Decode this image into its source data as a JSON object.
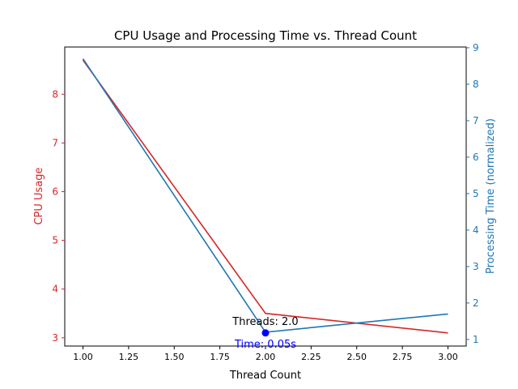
{
  "chart_data": {
    "type": "line",
    "title": "CPU Usage and Processing Time vs. Thread Count",
    "xlabel": "Thread Count",
    "ylabel_left": "CPU Usage",
    "ylabel_right": "Processing Time (normalized)",
    "xlim": [
      0.9,
      3.1
    ],
    "ylim_left": [
      2.83,
      8.97
    ],
    "ylim_right": [
      0.82,
      9.02
    ],
    "x_ticks": [
      1.0,
      1.25,
      1.5,
      1.75,
      2.0,
      2.25,
      2.5,
      2.75,
      3.0
    ],
    "x_tick_labels": [
      "1.00",
      "1.25",
      "1.50",
      "1.75",
      "2.00",
      "2.25",
      "2.50",
      "2.75",
      "3.00"
    ],
    "y_left_ticks": [
      3,
      4,
      5,
      6,
      7,
      8
    ],
    "y_right_ticks": [
      1,
      2,
      3,
      4,
      5,
      6,
      7,
      8,
      9
    ],
    "grid": false,
    "series": [
      {
        "axis": "left",
        "color": "#d62728",
        "x": [
          1,
          2,
          3
        ],
        "y": [
          8.7,
          3.5,
          3.1
        ]
      },
      {
        "axis": "right",
        "color": "#1f77b4",
        "x": [
          1,
          2,
          3
        ],
        "y": [
          8.7,
          1.2,
          1.7
        ]
      }
    ],
    "highlight": {
      "x": 2.0,
      "y": 3.1,
      "color": "#0000ff",
      "label_top": "Threads: 2.0",
      "label_bottom": "Time: 0.05s"
    }
  }
}
